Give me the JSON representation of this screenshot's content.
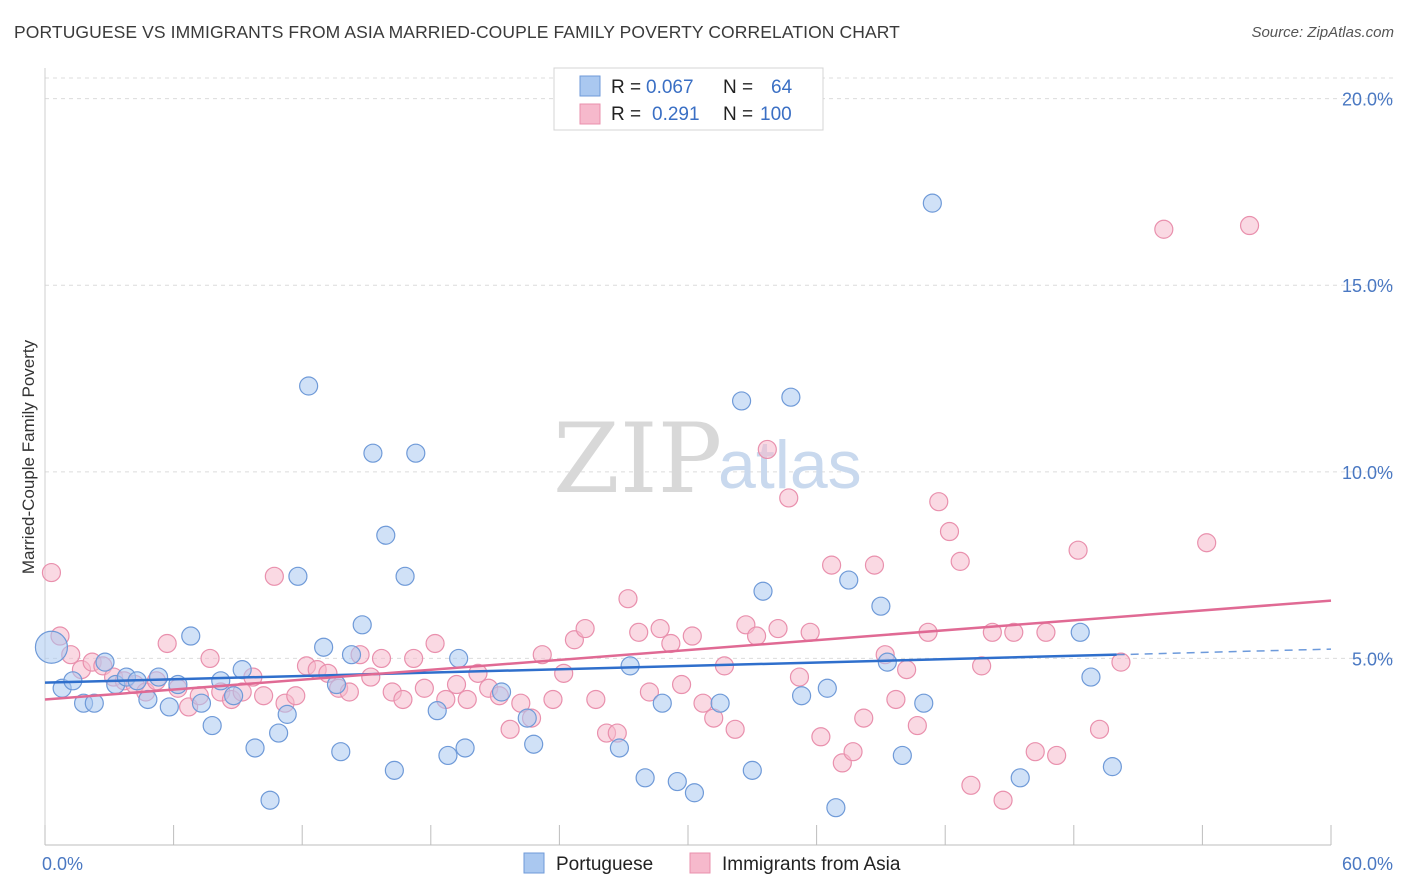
{
  "header": {
    "title": "PORTUGUESE VS IMMIGRANTS FROM ASIA MARRIED-COUPLE FAMILY POVERTY CORRELATION CHART",
    "source": "Source: ZipAtlas.com"
  },
  "watermark": {
    "zip": "ZIP",
    "atlas": "atlas"
  },
  "colors": {
    "blue_fill": "#aac8f0",
    "blue_stroke": "#6f9ad8",
    "blue_line": "#2f6fcc",
    "pink_fill": "#f6b9cc",
    "pink_stroke": "#e990ad",
    "pink_line": "#e06a94",
    "grid": "#dcdcdc",
    "axis_text": "#4a78c2"
  },
  "legend": {
    "rows": [
      {
        "r_label": "R =",
        "r_value": "0.067",
        "n_label": "N =",
        "n_value": "64"
      },
      {
        "r_label": "R =",
        "r_value": "0.291",
        "n_label": "N =",
        "n_value": "100"
      }
    ]
  },
  "chart_data": {
    "type": "scatter",
    "title": "PORTUGUESE VS IMMIGRANTS FROM ASIA MARRIED-COUPLE FAMILY POVERTY CORRELATION CHART",
    "xlabel": "",
    "ylabel": "Married-Couple Family Poverty",
    "xlim": [
      0,
      60
    ],
    "ylim": [
      0,
      20.5
    ],
    "x_tick_labels": [
      "0.0%",
      "60.0%"
    ],
    "y_ticks": [
      5,
      10,
      15,
      20
    ],
    "y_tick_labels": [
      "5.0%",
      "10.0%",
      "15.0%",
      "20.0%"
    ],
    "legend_position": "top-center",
    "series": [
      {
        "name": "Portuguese",
        "r": 0.067,
        "n": 64,
        "trend": {
          "x0": 0,
          "y0": 4.35,
          "x1": 50,
          "y1": 5.1,
          "dash_to_x": 60,
          "dash_to_y": 5.25
        },
        "points": [
          [
            0.3,
            5.3,
            "large"
          ],
          [
            0.8,
            4.2
          ],
          [
            1.3,
            4.4
          ],
          [
            1.8,
            3.8
          ],
          [
            2.3,
            3.8
          ],
          [
            2.8,
            4.9
          ],
          [
            3.3,
            4.3
          ],
          [
            3.8,
            4.5
          ],
          [
            4.3,
            4.4
          ],
          [
            4.8,
            3.9
          ],
          [
            5.3,
            4.5
          ],
          [
            5.8,
            3.7
          ],
          [
            6.2,
            4.3
          ],
          [
            6.8,
            5.6
          ],
          [
            7.3,
            3.8
          ],
          [
            7.8,
            3.2
          ],
          [
            8.2,
            4.4
          ],
          [
            8.8,
            4.0
          ],
          [
            9.2,
            4.7
          ],
          [
            9.8,
            2.6
          ],
          [
            10.5,
            1.2
          ],
          [
            10.9,
            3.0
          ],
          [
            11.3,
            3.5
          ],
          [
            11.8,
            7.2
          ],
          [
            12.3,
            12.3
          ],
          [
            13.0,
            5.3
          ],
          [
            13.6,
            4.3
          ],
          [
            13.8,
            2.5
          ],
          [
            14.3,
            5.1
          ],
          [
            14.8,
            5.9
          ],
          [
            15.3,
            10.5
          ],
          [
            15.9,
            8.3
          ],
          [
            16.3,
            2.0
          ],
          [
            16.8,
            7.2
          ],
          [
            17.3,
            10.5
          ],
          [
            18.3,
            3.6
          ],
          [
            18.8,
            2.4
          ],
          [
            19.3,
            5.0
          ],
          [
            19.6,
            2.6
          ],
          [
            21.3,
            4.1
          ],
          [
            22.5,
            3.4
          ],
          [
            22.8,
            2.7
          ],
          [
            26.8,
            2.6
          ],
          [
            27.3,
            4.8
          ],
          [
            28.0,
            1.8
          ],
          [
            28.8,
            3.8
          ],
          [
            29.5,
            1.7
          ],
          [
            30.3,
            1.4
          ],
          [
            31.5,
            3.8
          ],
          [
            32.5,
            11.9
          ],
          [
            33.0,
            2.0
          ],
          [
            33.5,
            6.8
          ],
          [
            34.8,
            12.0
          ],
          [
            35.3,
            4.0
          ],
          [
            36.5,
            4.2
          ],
          [
            36.9,
            1.0
          ],
          [
            37.5,
            7.1
          ],
          [
            39.0,
            6.4
          ],
          [
            39.3,
            4.9
          ],
          [
            40.0,
            2.4
          ],
          [
            41.0,
            3.8
          ],
          [
            41.4,
            17.2
          ],
          [
            45.5,
            1.8
          ],
          [
            48.3,
            5.7
          ],
          [
            48.8,
            4.5
          ],
          [
            49.8,
            2.1
          ]
        ]
      },
      {
        "name": "Immigrants from Asia",
        "r": 0.291,
        "n": 100,
        "trend": {
          "x0": 0,
          "y0": 3.9,
          "x1": 60,
          "y1": 6.55
        },
        "points": [
          [
            0.3,
            7.3
          ],
          [
            0.7,
            5.6
          ],
          [
            1.2,
            5.1
          ],
          [
            1.7,
            4.7
          ],
          [
            2.2,
            4.9
          ],
          [
            2.7,
            4.8
          ],
          [
            3.2,
            4.5
          ],
          [
            3.7,
            4.4
          ],
          [
            4.2,
            4.3
          ],
          [
            4.7,
            4.1
          ],
          [
            5.2,
            4.4
          ],
          [
            5.7,
            5.4
          ],
          [
            6.2,
            4.2
          ],
          [
            6.7,
            3.7
          ],
          [
            7.2,
            4.0
          ],
          [
            7.7,
            5.0
          ],
          [
            8.2,
            4.1
          ],
          [
            8.7,
            3.9
          ],
          [
            9.2,
            4.1
          ],
          [
            9.7,
            4.5
          ],
          [
            10.2,
            4.0
          ],
          [
            10.7,
            7.2
          ],
          [
            11.2,
            3.8
          ],
          [
            11.7,
            4.0
          ],
          [
            12.2,
            4.8
          ],
          [
            12.7,
            4.7
          ],
          [
            13.2,
            4.6
          ],
          [
            13.7,
            4.2
          ],
          [
            14.2,
            4.1
          ],
          [
            14.7,
            5.1
          ],
          [
            15.2,
            4.5
          ],
          [
            15.7,
            5.0
          ],
          [
            16.2,
            4.1
          ],
          [
            16.7,
            3.9
          ],
          [
            17.2,
            5.0
          ],
          [
            17.7,
            4.2
          ],
          [
            18.2,
            5.4
          ],
          [
            18.7,
            3.9
          ],
          [
            19.2,
            4.3
          ],
          [
            19.7,
            3.9
          ],
          [
            20.2,
            4.6
          ],
          [
            20.7,
            4.2
          ],
          [
            21.2,
            4.0
          ],
          [
            21.7,
            3.1
          ],
          [
            22.2,
            3.8
          ],
          [
            22.7,
            3.4
          ],
          [
            23.2,
            5.1
          ],
          [
            23.7,
            3.9
          ],
          [
            24.2,
            4.6
          ],
          [
            24.7,
            5.5
          ],
          [
            25.2,
            5.8
          ],
          [
            25.7,
            3.9
          ],
          [
            26.2,
            3.0
          ],
          [
            26.7,
            3.0
          ],
          [
            27.2,
            6.6
          ],
          [
            27.7,
            5.7
          ],
          [
            28.2,
            4.1
          ],
          [
            28.7,
            5.8
          ],
          [
            29.2,
            5.4
          ],
          [
            29.7,
            4.3
          ],
          [
            30.2,
            5.6
          ],
          [
            30.7,
            3.8
          ],
          [
            31.2,
            3.4
          ],
          [
            31.7,
            4.8
          ],
          [
            32.2,
            3.1
          ],
          [
            32.7,
            5.9
          ],
          [
            33.2,
            5.6
          ],
          [
            33.7,
            10.6
          ],
          [
            34.2,
            5.8
          ],
          [
            34.7,
            9.3
          ],
          [
            35.2,
            4.5
          ],
          [
            35.7,
            5.7
          ],
          [
            36.2,
            2.9
          ],
          [
            36.7,
            7.5
          ],
          [
            37.2,
            2.2
          ],
          [
            37.7,
            2.5
          ],
          [
            38.2,
            3.4
          ],
          [
            38.7,
            7.5
          ],
          [
            39.2,
            5.1
          ],
          [
            39.7,
            3.9
          ],
          [
            40.2,
            4.7
          ],
          [
            40.7,
            3.2
          ],
          [
            41.2,
            5.7
          ],
          [
            41.7,
            9.2
          ],
          [
            42.2,
            8.4
          ],
          [
            42.7,
            7.6
          ],
          [
            43.2,
            1.6
          ],
          [
            43.7,
            4.8
          ],
          [
            44.2,
            5.7
          ],
          [
            44.7,
            1.2
          ],
          [
            45.2,
            5.7
          ],
          [
            46.2,
            2.5
          ],
          [
            47.2,
            2.4
          ],
          [
            48.2,
            7.9
          ],
          [
            49.2,
            3.1
          ],
          [
            52.2,
            16.5
          ],
          [
            54.2,
            8.1
          ],
          [
            56.2,
            16.6
          ],
          [
            46.7,
            5.7
          ],
          [
            50.2,
            4.9
          ]
        ]
      }
    ]
  }
}
